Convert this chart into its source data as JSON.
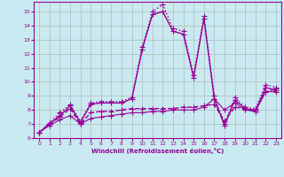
{
  "xlabel": "Windchill (Refroidissement éolien,°C)",
  "background_color": "#c8eaf0",
  "grid_color": "#b0b0b0",
  "line_color": "#990099",
  "xlim": [
    -0.5,
    23.5
  ],
  "ylim": [
    6,
    15.7
  ],
  "yticks": [
    6,
    7,
    8,
    9,
    10,
    11,
    12,
    13,
    14,
    15
  ],
  "xticks": [
    0,
    1,
    2,
    3,
    4,
    5,
    6,
    7,
    8,
    9,
    10,
    11,
    12,
    13,
    14,
    15,
    16,
    17,
    18,
    19,
    20,
    21,
    22,
    23
  ],
  "series": [
    {
      "x": [
        0,
        1,
        2,
        3,
        4,
        5,
        6,
        7,
        8,
        9,
        10,
        11,
        12,
        13,
        14,
        15,
        16,
        17,
        18,
        19,
        20,
        21,
        22,
        23
      ],
      "y": [
        6.4,
        7.1,
        7.8,
        8.4,
        7.2,
        8.5,
        8.6,
        8.6,
        8.6,
        8.9,
        12.5,
        15.0,
        15.5,
        13.8,
        13.6,
        10.5,
        14.7,
        9.0,
        7.0,
        8.9,
        8.2,
        8.1,
        9.8,
        9.6
      ],
      "linestyle": ":",
      "marker": "+",
      "markersize": 4,
      "linewidth": 1.0
    },
    {
      "x": [
        0,
        1,
        2,
        3,
        4,
        5,
        6,
        7,
        8,
        9,
        10,
        11,
        12,
        13,
        14,
        15,
        16,
        17,
        18,
        19,
        20,
        21,
        22,
        23
      ],
      "y": [
        6.4,
        7.0,
        7.6,
        8.3,
        7.1,
        8.4,
        8.5,
        8.5,
        8.5,
        8.8,
        12.3,
        14.8,
        15.0,
        13.6,
        13.4,
        10.3,
        14.5,
        8.8,
        6.9,
        8.7,
        8.1,
        7.9,
        9.6,
        9.4
      ],
      "linestyle": "-",
      "marker": "+",
      "markersize": 4,
      "linewidth": 1.0
    },
    {
      "x": [
        0,
        1,
        2,
        3,
        4,
        5,
        6,
        7,
        8,
        9,
        10,
        11,
        12,
        13,
        14,
        15,
        16,
        17,
        18,
        19,
        20,
        21,
        22,
        23
      ],
      "y": [
        6.4,
        7.0,
        7.5,
        8.1,
        7.0,
        7.8,
        7.9,
        7.9,
        8.0,
        8.1,
        8.1,
        8.1,
        8.1,
        8.1,
        8.2,
        8.2,
        8.3,
        8.4,
        7.2,
        8.2,
        8.1,
        8.0,
        9.3,
        9.5
      ],
      "linestyle": "--",
      "marker": "+",
      "markersize": 4,
      "linewidth": 1.0
    },
    {
      "x": [
        0,
        1,
        2,
        3,
        4,
        5,
        6,
        7,
        8,
        9,
        10,
        11,
        12,
        13,
        14,
        15,
        16,
        17,
        18,
        19,
        20,
        21,
        22,
        23
      ],
      "y": [
        6.4,
        6.9,
        7.3,
        7.6,
        7.0,
        7.4,
        7.5,
        7.6,
        7.7,
        7.8,
        7.8,
        7.9,
        7.9,
        8.0,
        8.0,
        8.0,
        8.2,
        8.8,
        8.0,
        8.5,
        8.0,
        7.9,
        9.3,
        9.3
      ],
      "linestyle": "-",
      "marker": "+",
      "markersize": 4,
      "linewidth": 0.8
    }
  ]
}
